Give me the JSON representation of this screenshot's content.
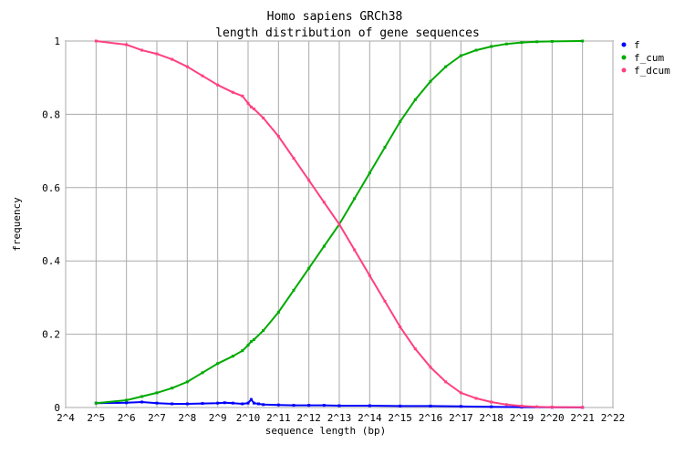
{
  "chart_data": {
    "type": "line",
    "title": "Homo sapiens GRCh38",
    "subtitle": "length distribution of gene sequences",
    "xlabel": "sequence length (bp)",
    "ylabel": "frequency",
    "x_scale": "log2",
    "xlim": [
      16,
      4194304
    ],
    "ylim": [
      0,
      1
    ],
    "grid": true,
    "legend_position": "right",
    "x_tick_labels": [
      "2^4",
      "2^5",
      "2^6",
      "2^7",
      "2^8",
      "2^9",
      "2^10",
      "2^11",
      "2^12",
      "2^13",
      "2^14",
      "2^15",
      "2^16",
      "2^17",
      "2^18",
      "2^19",
      "2^20",
      "2^21",
      "2^22"
    ],
    "y_tick_labels": [
      "0",
      "0.2",
      "0.4",
      "0.6",
      "0.8",
      "1"
    ],
    "series": [
      {
        "name": "f",
        "color": "#0000ff",
        "x": [
          32,
          64,
          91,
          128,
          181,
          256,
          362,
          512,
          600,
          724,
          900,
          1024,
          1100,
          1170,
          1300,
          1448,
          2048,
          2896,
          4096,
          5793,
          8192,
          16384,
          32768,
          65536,
          131072,
          262144,
          524288,
          1048576,
          2097152
        ],
        "y": [
          0.012,
          0.013,
          0.015,
          0.012,
          0.01,
          0.01,
          0.011,
          0.012,
          0.013,
          0.012,
          0.01,
          0.012,
          0.022,
          0.012,
          0.01,
          0.008,
          0.007,
          0.006,
          0.006,
          0.006,
          0.005,
          0.005,
          0.004,
          0.004,
          0.003,
          0.002,
          0.001,
          0.0005,
          0.0002
        ]
      },
      {
        "name": "f_cum",
        "color": "#00aa00",
        "x": [
          32,
          64,
          91,
          128,
          181,
          256,
          362,
          512,
          724,
          900,
          1024,
          1100,
          1170,
          1448,
          2048,
          2896,
          4096,
          5793,
          8192,
          11585,
          16384,
          23170,
          32768,
          46341,
          65536,
          92682,
          131072,
          185364,
          262144,
          370728,
          524288,
          741455,
          1048576,
          2097152
        ],
        "y": [
          0.012,
          0.02,
          0.03,
          0.04,
          0.053,
          0.07,
          0.095,
          0.12,
          0.14,
          0.155,
          0.17,
          0.18,
          0.185,
          0.21,
          0.26,
          0.32,
          0.38,
          0.44,
          0.5,
          0.57,
          0.64,
          0.71,
          0.78,
          0.84,
          0.89,
          0.93,
          0.96,
          0.975,
          0.985,
          0.992,
          0.996,
          0.998,
          0.999,
          1.0
        ]
      },
      {
        "name": "f_dcum",
        "color": "#ff4080",
        "x": [
          32,
          64,
          91,
          128,
          181,
          256,
          362,
          512,
          724,
          900,
          1024,
          1100,
          1170,
          1448,
          2048,
          2896,
          4096,
          5793,
          8192,
          11585,
          16384,
          23170,
          32768,
          46341,
          65536,
          92682,
          131072,
          185364,
          262144,
          370728,
          524288,
          741455,
          1048576,
          2097152
        ],
        "y": [
          1.0,
          0.99,
          0.975,
          0.965,
          0.95,
          0.93,
          0.905,
          0.88,
          0.86,
          0.85,
          0.83,
          0.82,
          0.815,
          0.79,
          0.74,
          0.68,
          0.62,
          0.56,
          0.5,
          0.43,
          0.36,
          0.29,
          0.22,
          0.16,
          0.11,
          0.07,
          0.04,
          0.025,
          0.015,
          0.008,
          0.004,
          0.002,
          0.001,
          0.0005
        ]
      }
    ]
  }
}
